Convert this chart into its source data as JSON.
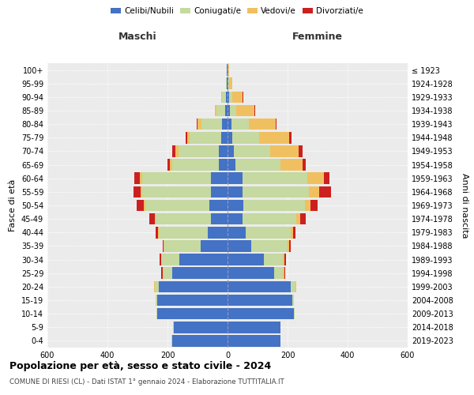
{
  "age_groups": [
    "0-4",
    "5-9",
    "10-14",
    "15-19",
    "20-24",
    "25-29",
    "30-34",
    "35-39",
    "40-44",
    "45-49",
    "50-54",
    "55-59",
    "60-64",
    "65-69",
    "70-74",
    "75-79",
    "80-84",
    "85-89",
    "90-94",
    "95-99",
    "100+"
  ],
  "birth_years": [
    "2019-2023",
    "2014-2018",
    "2009-2013",
    "2004-2008",
    "1999-2003",
    "1994-1998",
    "1989-1993",
    "1984-1988",
    "1979-1983",
    "1974-1978",
    "1969-1973",
    "1964-1968",
    "1959-1963",
    "1954-1958",
    "1949-1953",
    "1944-1948",
    "1939-1943",
    "1934-1938",
    "1929-1933",
    "1924-1928",
    "≤ 1923"
  ],
  "maschi": {
    "celibi": [
      185,
      180,
      235,
      235,
      230,
      185,
      160,
      90,
      65,
      55,
      60,
      55,
      55,
      30,
      28,
      22,
      18,
      8,
      4,
      2,
      2
    ],
    "coniugati": [
      2,
      2,
      2,
      5,
      12,
      30,
      60,
      120,
      165,
      185,
      215,
      230,
      230,
      155,
      135,
      105,
      70,
      28,
      15,
      3,
      1
    ],
    "vedovi": [
      0,
      0,
      0,
      0,
      2,
      2,
      2,
      2,
      2,
      3,
      5,
      5,
      8,
      8,
      10,
      8,
      12,
      5,
      3,
      1,
      0
    ],
    "divorziati": [
      0,
      0,
      0,
      0,
      2,
      3,
      5,
      5,
      8,
      18,
      22,
      22,
      18,
      8,
      10,
      5,
      2,
      1,
      0,
      0,
      0
    ]
  },
  "femmine": {
    "nubili": [
      175,
      175,
      220,
      215,
      210,
      155,
      120,
      80,
      60,
      50,
      52,
      50,
      50,
      25,
      22,
      15,
      12,
      8,
      4,
      2,
      1
    ],
    "coniugate": [
      2,
      2,
      3,
      5,
      15,
      30,
      65,
      120,
      150,
      180,
      205,
      220,
      215,
      150,
      120,
      90,
      58,
      22,
      12,
      3,
      1
    ],
    "vedove": [
      0,
      0,
      0,
      1,
      3,
      5,
      5,
      5,
      8,
      12,
      20,
      35,
      55,
      75,
      95,
      100,
      90,
      60,
      35,
      10,
      2
    ],
    "divorziate": [
      0,
      0,
      0,
      0,
      2,
      3,
      5,
      5,
      8,
      18,
      22,
      40,
      20,
      10,
      12,
      8,
      3,
      2,
      1,
      1,
      0
    ]
  },
  "colors": {
    "celibi_nubili": "#4472c4",
    "coniugati": "#c5d9a0",
    "vedovi": "#f0c060",
    "divorziati": "#cc2020"
  },
  "title": "Popolazione per età, sesso e stato civile - 2024",
  "subtitle": "COMUNE DI RIESI (CL) - Dati ISTAT 1° gennaio 2024 - Elaborazione TUTTITALIA.IT",
  "xlabel_left": "Maschi",
  "xlabel_right": "Femmine",
  "ylabel_left": "Fasce di età",
  "ylabel_right": "Anni di nascita",
  "xlim": 600,
  "background_color": "#ffffff",
  "plot_bg_color": "#ebebeb",
  "grid_color": "#ffffff"
}
